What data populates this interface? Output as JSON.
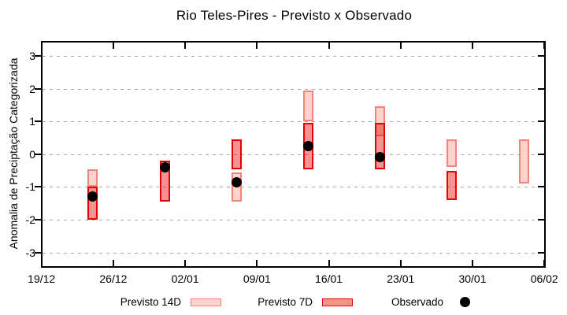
{
  "title": "Rio Teles-Pires - Previsto x Observado",
  "legend": {
    "p14_label": "Previsto 14D",
    "p7_label": "Previsto 7D",
    "obs_label": "Observado"
  },
  "colors": {
    "p14_fill": "#FAD3CE",
    "p14_border": "#F08478",
    "p7_fill": "rgba(230,10,0,0.44)",
    "p7_border": "#E60000",
    "observed": "#000000",
    "grid": "#A8A8A8",
    "frame": "#000000"
  },
  "chart_data": {
    "type": "candlestick",
    "title": "Rio Teles-Pires - Previsto x Observado",
    "xlabel": "",
    "ylabel": "Anomalia de Preciptação Categorizada",
    "ylim": [
      -3.4,
      3.45
    ],
    "yticks": [
      -3,
      -2,
      -1,
      0,
      1,
      2,
      3
    ],
    "x_axis_dates": [
      "19/12",
      "26/12",
      "02/01",
      "09/01",
      "16/01",
      "23/01",
      "30/01",
      "06/02"
    ],
    "x_span_days": 49,
    "grid": "horizontal-dashed",
    "legend_position": "bottom-outside",
    "series": [
      {
        "name": "Previsto 14D",
        "type": "range-bar"
      },
      {
        "name": "Previsto 7D",
        "type": "range-bar"
      },
      {
        "name": "Observado",
        "type": "point"
      }
    ],
    "groups": [
      {
        "date": "24/12",
        "days_from_start": 5,
        "previsto_14d": {
          "high": -0.45,
          "low": -1.0
        },
        "previsto_7d": {
          "high": -1.0,
          "low": -2.0
        },
        "observado": -1.3
      },
      {
        "date": "31/12",
        "days_from_start": 12,
        "previsto_14d": null,
        "previsto_7d": {
          "high": -0.2,
          "low": -1.45
        },
        "observado": -0.4
      },
      {
        "date": "07/01",
        "days_from_start": 19,
        "previsto_14d": {
          "high": -0.55,
          "low": -1.45
        },
        "previsto_7d": {
          "high": 0.45,
          "low": -0.45
        },
        "observado": -0.85
      },
      {
        "date": "14/01",
        "days_from_start": 26,
        "previsto_14d": {
          "high": 1.95,
          "low": 1.0
        },
        "previsto_7d": {
          "high": 0.95,
          "low": -0.45
        },
        "observado": 0.25
      },
      {
        "date": "21/01",
        "days_from_start": 33,
        "previsto_14d": {
          "high": 1.45,
          "low": 0.55
        },
        "previsto_7d": {
          "high": 0.95,
          "low": -0.45
        },
        "observado": -0.1
      },
      {
        "date": "28/01",
        "days_from_start": 40,
        "previsto_14d": {
          "high": 0.45,
          "low": -0.4
        },
        "previsto_7d": {
          "high": -0.5,
          "low": -1.4
        },
        "observado": null
      },
      {
        "date": "04/02",
        "days_from_start": 47,
        "previsto_14d": {
          "high": 0.45,
          "low": -0.9
        },
        "previsto_7d": null,
        "observado": null
      }
    ]
  }
}
